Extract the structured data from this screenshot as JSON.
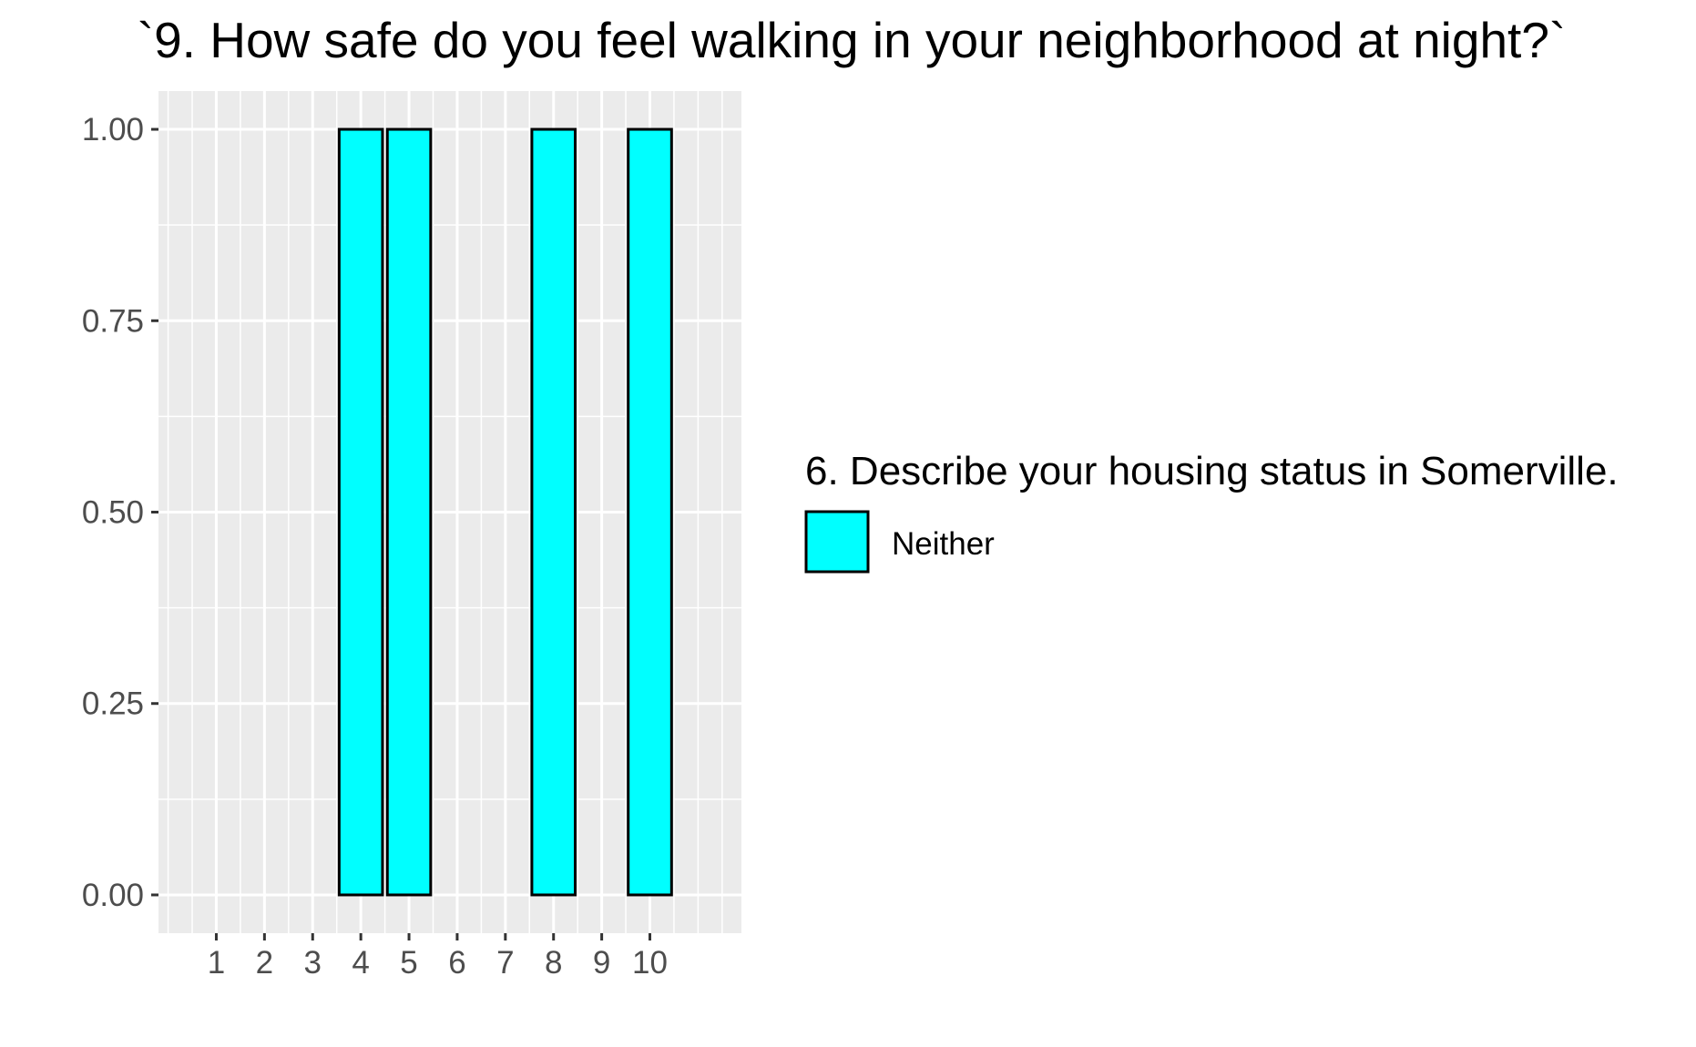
{
  "chart_data": {
    "type": "bar",
    "title": "`9. How safe do you feel walking in your neighborhood at night?`",
    "xlabel": "",
    "ylabel": "",
    "x_ticks": [
      "1",
      "2",
      "3",
      "4",
      "5",
      "6",
      "7",
      "8",
      "9",
      "10"
    ],
    "y_ticks": [
      "0.00",
      "0.25",
      "0.50",
      "0.75",
      "1.00"
    ],
    "ylim": [
      0,
      1
    ],
    "grid": true,
    "legend": {
      "title": "6. Describe your housing status in Somerville.",
      "position": "right",
      "entries": [
        {
          "label": "Neither",
          "color": "#00FFFF"
        }
      ]
    },
    "series": [
      {
        "name": "Neither",
        "color": "#00FFFF",
        "points": [
          {
            "x": 4,
            "y": 1
          },
          {
            "x": 5,
            "y": 1
          },
          {
            "x": 8,
            "y": 1
          },
          {
            "x": 10,
            "y": 1
          }
        ]
      }
    ],
    "colors": {
      "panel": "#EBEBEB",
      "grid": "#FFFFFF",
      "bar_fill": "#00FFFF",
      "bar_outline": "#000000"
    }
  }
}
